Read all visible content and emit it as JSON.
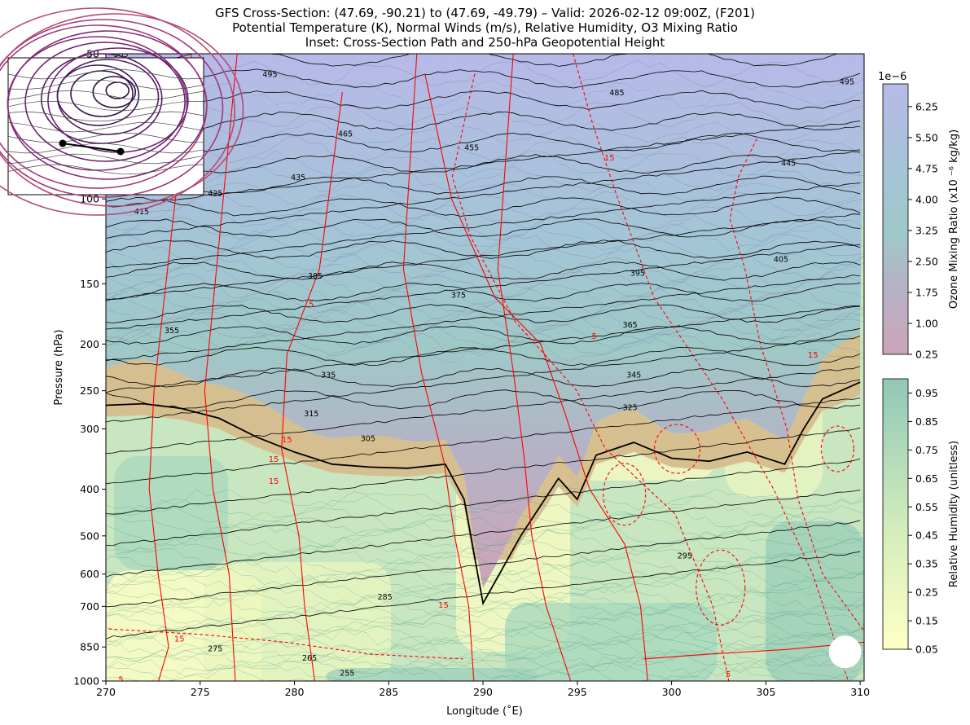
{
  "title": {
    "line1": "GFS Cross-Section: (47.69, -90.21) to (47.69, -49.79) – Valid: 2026-02-12 09:00Z, (F201)",
    "line2": "Potential Temperature (K), Normal Winds (m/s), Relative Humidity, O3 Mixing Ratio",
    "line3": "Inset: Cross-Section Path and 250-hPa Geopotential Height"
  },
  "chart_data": {
    "type": "heatmap",
    "xlabel": "Longitude (˚E)",
    "ylabel": "Pressure (hPa)",
    "xlim": [
      270,
      310.21
    ],
    "ylim": [
      1000,
      50
    ],
    "y_scale": "log",
    "x_ticks": [
      270,
      275,
      280,
      285,
      290,
      295,
      300,
      305,
      310
    ],
    "y_ticks": [
      1000,
      850,
      700,
      600,
      500,
      400,
      300,
      250,
      200,
      150,
      100,
      50
    ],
    "grid": false,
    "tropopause_pressure_hpa": [
      {
        "lon": 270,
        "p": 268
      },
      {
        "lon": 272,
        "p": 266
      },
      {
        "lon": 274,
        "p": 272
      },
      {
        "lon": 276,
        "p": 285
      },
      {
        "lon": 278,
        "p": 312
      },
      {
        "lon": 280,
        "p": 335
      },
      {
        "lon": 282,
        "p": 355
      },
      {
        "lon": 284,
        "p": 360
      },
      {
        "lon": 286,
        "p": 362
      },
      {
        "lon": 288,
        "p": 355
      },
      {
        "lon": 289,
        "p": 420
      },
      {
        "lon": 290,
        "p": 690
      },
      {
        "lon": 292,
        "p": 500
      },
      {
        "lon": 294,
        "p": 380
      },
      {
        "lon": 295,
        "p": 420
      },
      {
        "lon": 296,
        "p": 340
      },
      {
        "lon": 298,
        "p": 320
      },
      {
        "lon": 300,
        "p": 345
      },
      {
        "lon": 302,
        "p": 350
      },
      {
        "lon": 304,
        "p": 335
      },
      {
        "lon": 306,
        "p": 355
      },
      {
        "lon": 307,
        "p": 300
      },
      {
        "lon": 308,
        "p": 260
      },
      {
        "lon": 310,
        "p": 240
      }
    ],
    "theta_labels": [
      {
        "value": "505",
        "lon": 270.8,
        "p": 50
      },
      {
        "value": "495",
        "lon": 278.7,
        "p": 55
      },
      {
        "value": "465",
        "lon": 282.7,
        "p": 73
      },
      {
        "value": "435",
        "lon": 280.2,
        "p": 90
      },
      {
        "value": "425",
        "lon": 275.8,
        "p": 97
      },
      {
        "value": "415",
        "lon": 271.9,
        "p": 106
      },
      {
        "value": "455",
        "lon": 289.4,
        "p": 78
      },
      {
        "value": "485",
        "lon": 297.1,
        "p": 60
      },
      {
        "value": "495",
        "lon": 309.3,
        "p": 57
      },
      {
        "value": "445",
        "lon": 306.2,
        "p": 84
      },
      {
        "value": "405",
        "lon": 305.8,
        "p": 133
      },
      {
        "value": "395",
        "lon": 298.2,
        "p": 142
      },
      {
        "value": "385",
        "lon": 281.1,
        "p": 144
      },
      {
        "value": "375",
        "lon": 288.7,
        "p": 158
      },
      {
        "value": "365",
        "lon": 297.8,
        "p": 182
      },
      {
        "value": "355",
        "lon": 273.5,
        "p": 187
      },
      {
        "value": "345",
        "lon": 298.0,
        "p": 231
      },
      {
        "value": "335",
        "lon": 281.8,
        "p": 231
      },
      {
        "value": "325",
        "lon": 297.8,
        "p": 270
      },
      {
        "value": "315",
        "lon": 280.9,
        "p": 278
      },
      {
        "value": "305",
        "lon": 283.9,
        "p": 313
      },
      {
        "value": "295",
        "lon": 300.7,
        "p": 548
      },
      {
        "value": "285",
        "lon": 284.8,
        "p": 667
      },
      {
        "value": "275",
        "lon": 275.8,
        "p": 855
      },
      {
        "value": "265",
        "lon": 280.8,
        "p": 893
      },
      {
        "value": "255",
        "lon": 282.8,
        "p": 960
      }
    ],
    "wind_labels": [
      {
        "value": "5",
        "lon": 280.9,
        "p": 165
      },
      {
        "value": "5",
        "lon": 295.9,
        "p": 192
      },
      {
        "value": "15",
        "lon": 296.7,
        "p": 82
      },
      {
        "value": "15",
        "lon": 279.6,
        "p": 315
      },
      {
        "value": "15",
        "lon": 278.9,
        "p": 346
      },
      {
        "value": "15",
        "lon": 287.9,
        "p": 694
      },
      {
        "value": "15",
        "lon": 278.9,
        "p": 384
      },
      {
        "value": "15",
        "lon": 273.9,
        "p": 815
      },
      {
        "value": "15",
        "lon": 307.5,
        "p": 210
      },
      {
        "value": "5",
        "lon": 303.0,
        "p": 965
      },
      {
        "value": "5",
        "lon": 270.8,
        "p": 990
      }
    ],
    "colorbars": [
      {
        "name": "O3",
        "label": "Ozone Mixing Ratio (x10 ⁻⁶ kg/kg)",
        "multiplier": "1e−6",
        "ticks": [
          "6.25",
          "5.50",
          "4.75",
          "4.00",
          "3.25",
          "2.50",
          "1.75",
          "1.00",
          "0.25"
        ],
        "range": [
          0.25,
          6.8
        ]
      },
      {
        "name": "RH",
        "label": "Relative Humidity (unitless)",
        "ticks": [
          "0.95",
          "0.85",
          "0.75",
          "0.65",
          "0.55",
          "0.45",
          "0.35",
          "0.25",
          "0.15",
          "0.05"
        ],
        "range": [
          0.05,
          1.0
        ]
      }
    ],
    "inset": {
      "description_shown": "250-hPa Geopotential Height contours with cross-section path",
      "path_endpoints": [
        [
          47.69,
          -90.21
        ],
        [
          47.69,
          -49.79
        ]
      ]
    }
  },
  "colors": {
    "theta": "#000000",
    "wind": "#ff0000",
    "tropopause": "#000000",
    "rh_low": "#ffffc0",
    "rh_high": "#8fc8b4",
    "ozone_low": "#c9a4b9",
    "ozone_high": "#b7bae8"
  }
}
